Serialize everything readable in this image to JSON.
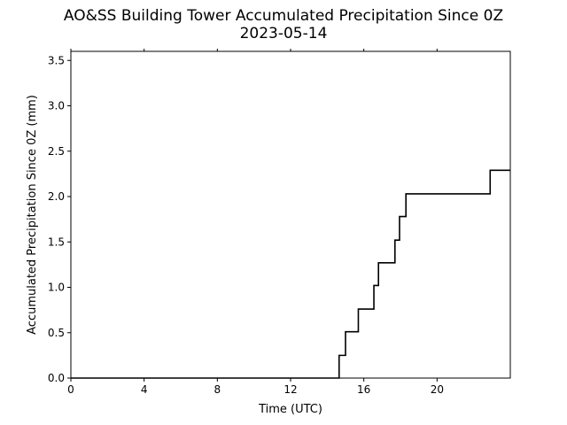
{
  "chart_data": {
    "type": "line",
    "title": "AO&SS Building Tower Accumulated Precipitation Since 0Z",
    "subtitle": "2023-05-14",
    "xlabel": "Time (UTC)",
    "ylabel": "Accumulated Precipitation Since 0Z (mm)",
    "xlim": [
      0,
      24
    ],
    "ylim": [
      0,
      3.6
    ],
    "grid": false,
    "step": "post",
    "line_color": "#000000",
    "x_ticks": [
      {
        "value": 0,
        "label": "0"
      },
      {
        "value": 4,
        "label": "4"
      },
      {
        "value": 8,
        "label": "8"
      },
      {
        "value": 12,
        "label": "12"
      },
      {
        "value": 16,
        "label": "16"
      },
      {
        "value": 20,
        "label": "20"
      }
    ],
    "y_ticks": [
      {
        "value": 0.0,
        "label": "0.0"
      },
      {
        "value": 0.5,
        "label": "0.5"
      },
      {
        "value": 1.0,
        "label": "1.0"
      },
      {
        "value": 1.5,
        "label": "1.5"
      },
      {
        "value": 2.0,
        "label": "2.0"
      },
      {
        "value": 2.5,
        "label": "2.5"
      },
      {
        "value": 3.0,
        "label": "3.0"
      },
      {
        "value": 3.5,
        "label": "3.5"
      }
    ],
    "series": [
      {
        "x": [
          0,
          14.65,
          15.0,
          15.7,
          16.55,
          16.8,
          17.7,
          17.95,
          18.3,
          22.9,
          24
        ],
        "y": [
          0.0,
          0.25,
          0.51,
          0.76,
          1.02,
          1.27,
          1.52,
          1.78,
          2.03,
          2.29,
          2.29
        ]
      }
    ]
  }
}
